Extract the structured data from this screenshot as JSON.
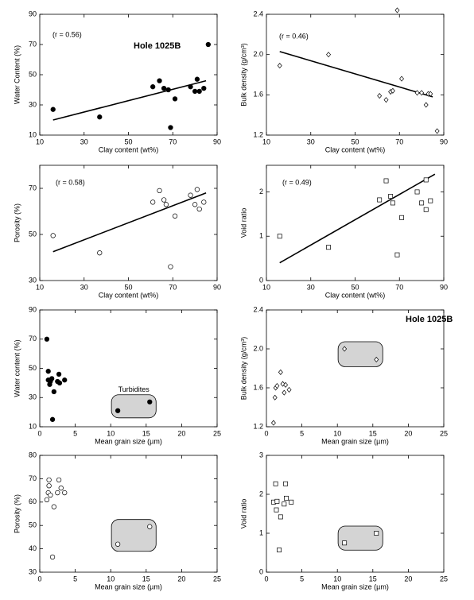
{
  "chart_data": [
    {
      "type": "scatter",
      "marker": "circle-filled",
      "xlabel": "Clay content (wt%)",
      "ylabel": "Water Content (%)",
      "annotations": [
        "(r = 0.56)",
        "Hole 1025B"
      ],
      "xlim": [
        10,
        90
      ],
      "xticks": [
        10,
        30,
        50,
        70,
        90
      ],
      "ylim": [
        10,
        90
      ],
      "yticks": [
        10,
        30,
        50,
        70,
        90
      ],
      "x": [
        16,
        37,
        61,
        64,
        66,
        68,
        69,
        71,
        78,
        80,
        81,
        82,
        84,
        86
      ],
      "values": [
        27,
        22,
        42,
        46,
        41,
        40,
        15,
        34,
        42,
        39,
        47,
        39,
        41,
        70
      ],
      "trend_line": {
        "x": [
          16,
          85
        ],
        "y": [
          20,
          46
        ]
      }
    },
    {
      "type": "scatter",
      "marker": "diamond-open",
      "xlabel": "Clay content (wt%)",
      "ylabel": "Bulk density (g/cm³)",
      "annotations": [
        "(r = 0.46)"
      ],
      "xlim": [
        10,
        90
      ],
      "xticks": [
        10,
        30,
        50,
        70,
        90
      ],
      "ylim": [
        1.2,
        2.4
      ],
      "yticks": [
        1.2,
        1.6,
        {
          "value": 2,
          "label": "2.0"
        },
        2.4
      ],
      "x": [
        16,
        38,
        61,
        64,
        66,
        67,
        69,
        71,
        78,
        80,
        82,
        83,
        84,
        87
      ],
      "values": [
        1.89,
        2.0,
        1.59,
        1.55,
        1.63,
        1.64,
        2.44,
        1.76,
        1.62,
        1.62,
        1.5,
        1.61,
        1.61,
        1.24
      ],
      "trend_line": {
        "x": [
          16,
          85
        ],
        "y": [
          2.03,
          1.58
        ]
      }
    },
    {
      "type": "scatter",
      "marker": "circle-open",
      "xlabel": "Clay content (wt%)",
      "ylabel": "Porosity (%)",
      "annotations": [
        "(r = 0.58)"
      ],
      "xlim": [
        10,
        90
      ],
      "xticks": [
        10,
        30,
        50,
        70,
        90
      ],
      "ylim": [
        30,
        80
      ],
      "yticks": [
        30,
        50,
        70
      ],
      "x": [
        16,
        37,
        61,
        64,
        66,
        67,
        69,
        71,
        78,
        80,
        81,
        82,
        84
      ],
      "values": [
        49.5,
        42,
        64,
        69,
        65,
        63,
        36,
        58,
        67,
        63,
        69.5,
        61,
        64
      ],
      "trend_line": {
        "x": [
          16,
          85
        ],
        "y": [
          42.5,
          68
        ]
      }
    },
    {
      "type": "scatter",
      "marker": "square-open",
      "xlabel": "Clay content (wt%)",
      "ylabel": "Void ratio",
      "annotations": [
        "(r = 0.49)"
      ],
      "xlim": [
        10,
        90
      ],
      "xticks": [
        10,
        30,
        50,
        70,
        90
      ],
      "ylim": [
        0,
        2.6
      ],
      "yticks": [
        0,
        1,
        2
      ],
      "x": [
        16,
        38,
        61,
        64,
        66,
        67,
        69,
        71,
        78,
        80,
        82,
        82,
        84
      ],
      "values": [
        1.0,
        0.75,
        1.82,
        2.25,
        1.9,
        1.75,
        0.58,
        1.42,
        2.0,
        1.75,
        2.27,
        1.6,
        1.8
      ],
      "trend_line": {
        "x": [
          16,
          86
        ],
        "y": [
          0.4,
          2.4
        ]
      }
    },
    {
      "type": "scatter",
      "marker": "circle-filled",
      "xlabel": "Mean grain size (µm)",
      "ylabel": "Water content (%)",
      "annotations": [
        "Turbidites"
      ],
      "xlim": [
        0,
        25
      ],
      "xticks": [
        0,
        5,
        10,
        15,
        20,
        25
      ],
      "ylim": [
        10,
        90
      ],
      "yticks": [
        10,
        30,
        50,
        70,
        90
      ],
      "x": [
        1,
        1.2,
        1.2,
        1.4,
        1.5,
        1.7,
        1.8,
        2,
        2.5,
        2.7,
        2.8,
        3.5,
        11,
        15.5
      ],
      "values": [
        70,
        48,
        42,
        39,
        41,
        43,
        15,
        34,
        41,
        46,
        40,
        42,
        21,
        27
      ]
    },
    {
      "type": "scatter",
      "marker": "diamond-open",
      "xlabel": "Mean grain size (µm)",
      "ylabel": "Bulk density (g/cm³)",
      "annotations": [
        "Hole 1025B"
      ],
      "xlim": [
        0,
        25
      ],
      "xticks": [
        0,
        5,
        10,
        15,
        20,
        25
      ],
      "ylim": [
        1.2,
        2.4
      ],
      "yticks": [
        1.2,
        1.6,
        {
          "value": 2,
          "label": "2.0"
        },
        2.4
      ],
      "x": [
        1,
        1.2,
        1.3,
        1.5,
        2,
        2.3,
        2.5,
        2.7,
        3.2,
        11,
        15.5
      ],
      "values": [
        1.24,
        1.5,
        1.6,
        1.62,
        1.76,
        1.64,
        1.55,
        1.63,
        1.58,
        2.0,
        1.89
      ]
    },
    {
      "type": "scatter",
      "marker": "circle-open",
      "xlabel": "Mean grain size (µm)",
      "ylabel": "Porosity (%)",
      "xlim": [
        0,
        25
      ],
      "xticks": [
        0,
        5,
        10,
        15,
        20,
        25
      ],
      "ylim": [
        30,
        80
      ],
      "yticks": [
        30,
        40,
        50,
        60,
        70,
        80
      ],
      "x": [
        1,
        1.2,
        1.3,
        1.3,
        1.5,
        1.8,
        2,
        2.5,
        2.7,
        3,
        3.5,
        11,
        15.5
      ],
      "values": [
        61,
        64,
        67,
        69.5,
        63,
        36.5,
        58,
        64,
        69.5,
        66,
        64,
        42,
        49.5
      ]
    },
    {
      "type": "scatter",
      "marker": "square-open",
      "xlabel": "Mean grain size (µm)",
      "ylabel": "Void ratio",
      "xlim": [
        0,
        25
      ],
      "xticks": [
        0,
        5,
        10,
        15,
        20,
        25
      ],
      "ylim": [
        0,
        3
      ],
      "yticks": [
        0,
        1,
        2,
        3
      ],
      "x": [
        1,
        1.3,
        1.4,
        1.5,
        1.8,
        2,
        2.5,
        2.7,
        2.8,
        3.5,
        11,
        15.5
      ],
      "values": [
        1.8,
        2.27,
        1.6,
        1.82,
        0.57,
        1.42,
        1.75,
        2.27,
        1.9,
        1.8,
        0.75,
        1.0
      ]
    }
  ]
}
